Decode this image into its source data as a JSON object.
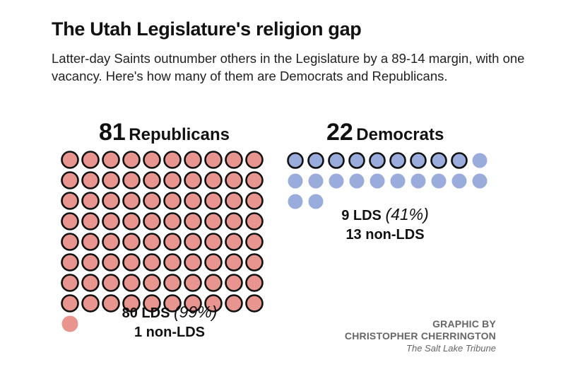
{
  "title": "The Utah Legislature's religion gap",
  "subtitle": "Latter-day Saints outnumber others in the Legislature by a 89-14 margin, with one vacancy. Here's how many of them are Democrats and Republicans.",
  "colors": {
    "republican": "#e8948f",
    "democrat": "#9aacdb",
    "outline": "#111111"
  },
  "credit": {
    "line1": "GRAPHIC BY",
    "line2": "CHRISTOPHER CHERRINGTON",
    "line3": "The Salt Lake Tribune"
  },
  "chart_data": [
    {
      "type": "waffle",
      "party": "Republicans",
      "heading_count": "81",
      "heading_label": "Republicans",
      "total": 81,
      "lds": 80,
      "non_lds": 1,
      "columns": 10,
      "lds_label": "80 LDS",
      "lds_pct": "(99%)",
      "non_lds_label": "1 non-LDS"
    },
    {
      "type": "waffle",
      "party": "Democrats",
      "heading_count": "22",
      "heading_label": "Democrats",
      "total": 22,
      "lds": 9,
      "non_lds": 13,
      "columns": 10,
      "lds_label": "9 LDS",
      "lds_pct": "(41%)",
      "non_lds_label": "13 non-LDS"
    }
  ]
}
